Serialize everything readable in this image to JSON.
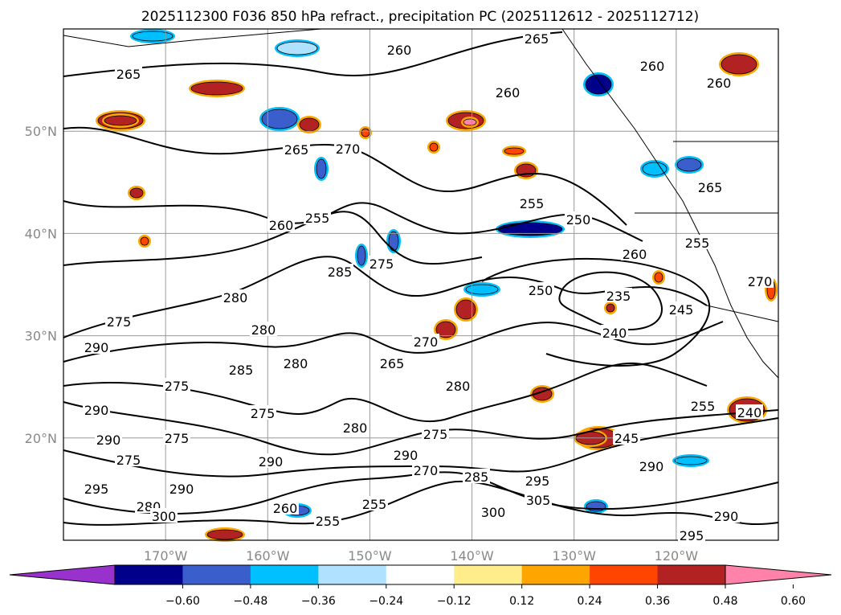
{
  "chart_data": {
    "type": "contour-map",
    "title": "2025112300 F036 850 hPa refract., precipitation PC (2025112612 - 2025112712)",
    "lat_ticks": [
      "50°N",
      "40°N",
      "30°N",
      "20°N"
    ],
    "lat_values": [
      50,
      40,
      30,
      20
    ],
    "lon_ticks": [
      "170°W",
      "160°W",
      "150°W",
      "140°W",
      "130°W",
      "120°W"
    ],
    "lon_values": [
      -170,
      -160,
      -150,
      -140,
      -130,
      -120
    ],
    "lon_range": [
      -180,
      -110
    ],
    "lat_range": [
      10,
      60
    ],
    "grid": true,
    "colorbar": {
      "ticks": [
        "−0.60",
        "−0.48",
        "−0.36",
        "−0.24",
        "−0.12",
        "0.12",
        "0.24",
        "0.36",
        "0.48",
        "0.60"
      ],
      "colors": [
        "#9932CC",
        "#00008B",
        "#3A5FCD",
        "#00BFFF",
        "#B0E2FF",
        "#FFFFFF",
        "#FFEC8B",
        "#FFA500",
        "#FF4500",
        "#B22222",
        "#FF82AB"
      ],
      "extend": "both"
    },
    "contour_labels": [
      "260",
      "265",
      "265",
      "260",
      "260",
      "260",
      "265",
      "270",
      "255",
      "250",
      "255",
      "260",
      "265",
      "255",
      "285",
      "275",
      "260",
      "235",
      "250",
      "245",
      "270",
      "280",
      "275",
      "280",
      "290",
      "240",
      "285",
      "280",
      "265",
      "270",
      "280",
      "275",
      "290",
      "290",
      "275",
      "275",
      "280",
      "275",
      "290",
      "290",
      "270",
      "285",
      "295",
      "305",
      "300",
      "290",
      "255",
      "240",
      "245",
      "295",
      "290",
      "280",
      "300",
      "260",
      "255",
      "255",
      "290",
      "295",
      "275"
    ]
  }
}
